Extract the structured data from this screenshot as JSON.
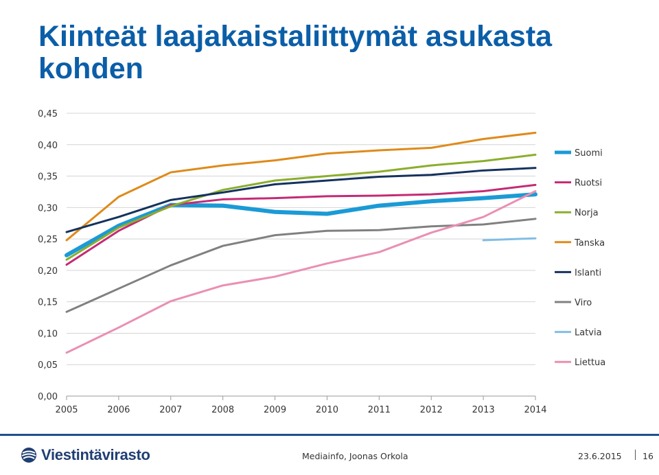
{
  "slide": {
    "title": "Kiinteät laajakaistaliittymät asukasta kohden"
  },
  "chart_data": {
    "type": "line",
    "categories": [
      "2005",
      "2006",
      "2007",
      "2008",
      "2009",
      "2010",
      "2011",
      "2012",
      "2013",
      "2014"
    ],
    "ylim": [
      0,
      0.45
    ],
    "yticks": [
      "0,00",
      "0,05",
      "0,10",
      "0,15",
      "0,20",
      "0,25",
      "0,30",
      "0,35",
      "0,40",
      "0,45"
    ],
    "grid": true,
    "legend_position": "right",
    "series": [
      {
        "name": "Suomi",
        "color": "#1b9ad6",
        "width": 6,
        "values": [
          0.224,
          0.271,
          0.304,
          0.303,
          0.293,
          0.29,
          0.303,
          0.31,
          0.315,
          0.321
        ]
      },
      {
        "name": "Ruotsi",
        "color": "#c42a74",
        "width": 3,
        "values": [
          0.209,
          0.263,
          0.304,
          0.313,
          0.315,
          0.318,
          0.319,
          0.321,
          0.326,
          0.336
        ]
      },
      {
        "name": "Norja",
        "color": "#8aae2c",
        "width": 3,
        "values": [
          0.217,
          0.268,
          0.302,
          0.328,
          0.343,
          0.35,
          0.357,
          0.367,
          0.374,
          0.384
        ]
      },
      {
        "name": "Tanska",
        "color": "#df8a1a",
        "width": 3,
        "values": [
          0.248,
          0.317,
          0.356,
          0.367,
          0.375,
          0.386,
          0.391,
          0.395,
          0.409,
          0.419
        ]
      },
      {
        "name": "Islanti",
        "color": "#14325e",
        "width": 3,
        "values": [
          0.261,
          0.285,
          0.312,
          0.324,
          0.337,
          0.343,
          0.349,
          0.352,
          0.359,
          0.363
        ]
      },
      {
        "name": "Viro",
        "color": "#808080",
        "width": 3,
        "values": [
          0.134,
          0.171,
          0.208,
          0.239,
          0.256,
          0.263,
          0.264,
          0.27,
          0.273,
          0.282
        ]
      },
      {
        "name": "Latvia",
        "color": "#82bde4",
        "width": 3,
        "values": [
          null,
          null,
          null,
          null,
          null,
          null,
          null,
          null,
          0.248,
          0.251
        ]
      },
      {
        "name": "Liettua",
        "color": "#ea8fb3",
        "width": 3,
        "values": [
          0.069,
          0.109,
          0.151,
          0.176,
          0.19,
          0.211,
          0.229,
          0.26,
          0.285,
          0.326
        ]
      }
    ]
  },
  "footer": {
    "logo_text": "Viestintävirasto",
    "center": "Mediainfo, Joonas Orkola",
    "date": "23.6.2015",
    "page": "16"
  }
}
